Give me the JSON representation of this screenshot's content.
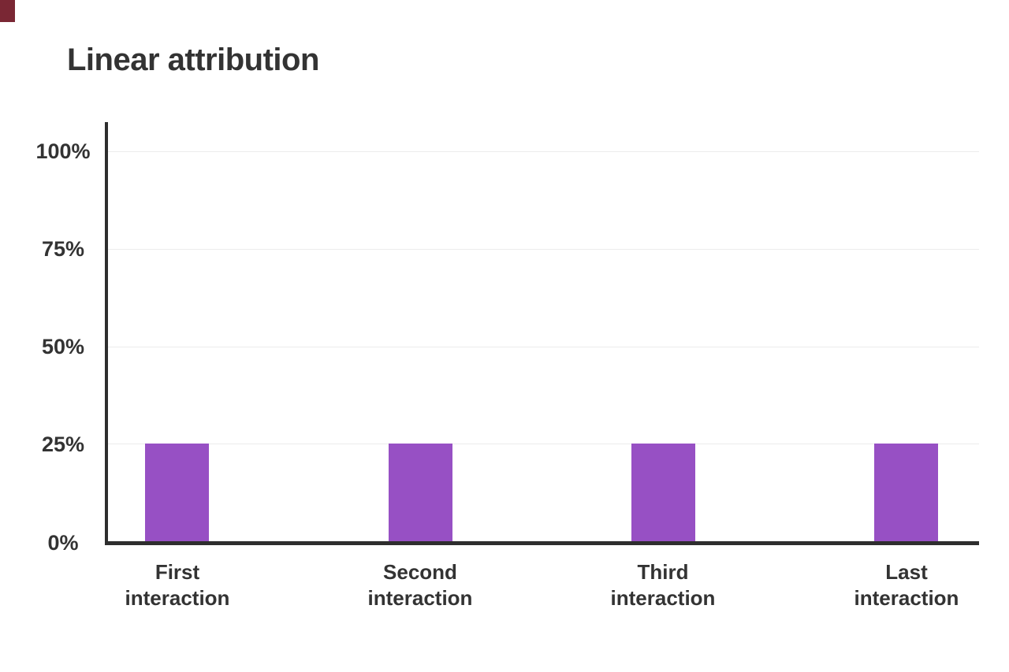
{
  "page": {
    "background_color": "#ffffff",
    "corner_mark_color": "#7a2734"
  },
  "title": "Linear attribution",
  "chart_data": {
    "type": "bar",
    "title": "Linear attribution",
    "categories": [
      "First\ninteraction",
      "Second\ninteraction",
      "Third\ninteraction",
      "Last\ninteraction"
    ],
    "values": [
      25,
      25,
      25,
      25
    ],
    "y_ticks": [
      "100%",
      "75%",
      "50%",
      "25%",
      "0%"
    ],
    "xlabel": "",
    "ylabel": "",
    "ylim": [
      0,
      100
    ],
    "unit": "%",
    "bar_color": "#9750c4",
    "axis_color": "#2e2e2e",
    "gridline_color": "#ececec",
    "text_color": "#333333",
    "grid": "horizontal-only",
    "legend_position": "none"
  }
}
